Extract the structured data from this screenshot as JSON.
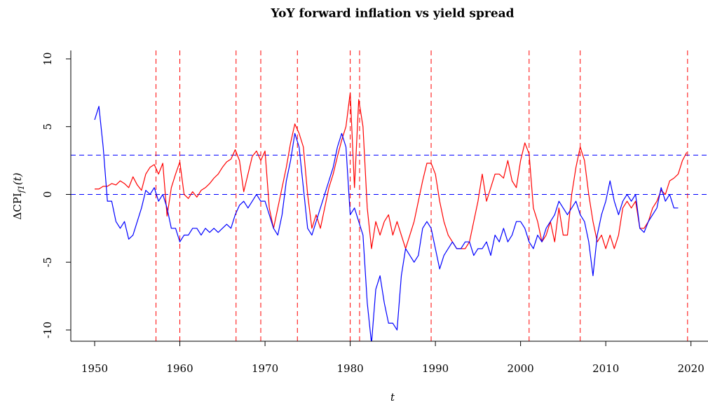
{
  "chart_data": {
    "type": "line",
    "title": "YoY forward inflation vs yield spread",
    "xlabel": "t",
    "ylabel": {
      "base": "ΔCPI",
      "sub": "f1",
      "rest": "(t)"
    },
    "xlim": [
      1947.2,
      2022.0
    ],
    "ylim": [
      -10.83,
      10.62
    ],
    "xticks": [
      1950,
      1960,
      1970,
      1980,
      1990,
      2000,
      2010,
      2020
    ],
    "yticks": [
      -10,
      -5,
      0,
      5,
      10
    ],
    "vlines": {
      "color": "#ff0000",
      "values": [
        1957.2,
        1960.0,
        1966.6,
        1969.5,
        1973.8,
        1980.0,
        1981.1,
        1989.5,
        2001.0,
        2007.0,
        2019.6
      ]
    },
    "hlines": {
      "color": "#0000ff",
      "values": [
        0,
        2.9
      ]
    },
    "x": [
      1950,
      1950.5,
      1951,
      1951.5,
      1952,
      1952.5,
      1953,
      1953.5,
      1954,
      1954.5,
      1955,
      1955.5,
      1956,
      1956.5,
      1957,
      1957.5,
      1958,
      1958.5,
      1959,
      1959.5,
      1960,
      1960.5,
      1961,
      1961.5,
      1962,
      1962.5,
      1963,
      1963.5,
      1964,
      1964.5,
      1965,
      1965.5,
      1966,
      1966.5,
      1967,
      1967.5,
      1968,
      1968.5,
      1969,
      1969.5,
      1970,
      1970.5,
      1971,
      1971.5,
      1972,
      1972.5,
      1973,
      1973.5,
      1974,
      1974.5,
      1975,
      1975.5,
      1976,
      1976.5,
      1977,
      1977.5,
      1978,
      1978.5,
      1979,
      1979.5,
      1980,
      1980.5,
      1981,
      1981.5,
      1982,
      1982.5,
      1983,
      1983.5,
      1984,
      1984.5,
      1985,
      1985.5,
      1986,
      1986.5,
      1987,
      1987.5,
      1988,
      1988.5,
      1989,
      1989.5,
      1990,
      1990.5,
      1991,
      1991.5,
      1992,
      1992.5,
      1993,
      1993.5,
      1994,
      1994.5,
      1995,
      1995.5,
      1996,
      1996.5,
      1997,
      1997.5,
      1998,
      1998.5,
      1999,
      1999.5,
      2000,
      2000.5,
      2001,
      2001.5,
      2002,
      2002.5,
      2003,
      2003.5,
      2004,
      2004.5,
      2005,
      2005.5,
      2006,
      2006.5,
      2007,
      2007.5,
      2008,
      2008.5,
      2009,
      2009.5,
      2010,
      2010.5,
      2011,
      2011.5,
      2012,
      2012.5,
      2013,
      2013.5,
      2014,
      2014.5,
      2015,
      2015.5,
      2016,
      2016.5,
      2017,
      2017.5,
      2018,
      2018.5,
      2019,
      2019.5
    ],
    "series": [
      {
        "color": "#ff0000",
        "values": [
          0.4,
          0.4,
          0.6,
          0.6,
          0.8,
          0.7,
          1.0,
          0.8,
          0.5,
          1.3,
          0.7,
          0.3,
          1.5,
          2.0,
          2.2,
          1.5,
          2.3,
          -1.6,
          0.5,
          1.5,
          2.4,
          0,
          -0.3,
          0.2,
          -0.2,
          0.3,
          0.5,
          0.8,
          1.2,
          1.5,
          2.0,
          2.4,
          2.6,
          3.3,
          2.5,
          0.2,
          1.5,
          2.8,
          3.2,
          2.5,
          3.2,
          -1,
          -2.5,
          -1,
          0.5,
          2,
          3.8,
          5.2,
          4.5,
          3.5,
          0,
          -2.5,
          -1.5,
          -2.5,
          -1,
          0.5,
          1.5,
          2.8,
          4,
          5,
          7.5,
          0.5,
          7,
          5,
          -1,
          -4,
          -2,
          -3,
          -2,
          -1.5,
          -3,
          -2,
          -3,
          -4,
          -3,
          -2,
          -0.5,
          1,
          2.3,
          2.3,
          1.5,
          -0.5,
          -2,
          -3,
          -3.5,
          -4,
          -4,
          -4,
          -3.5,
          -2,
          -0.5,
          1.5,
          -0.5,
          0.5,
          1.5,
          1.5,
          1.2,
          2.5,
          1,
          0.5,
          2.5,
          3.8,
          3,
          -1,
          -2,
          -3.5,
          -3,
          -2,
          -3.5,
          -1,
          -3,
          -3,
          0,
          2,
          3.5,
          2.5,
          0,
          -2,
          -3.5,
          -3,
          -4,
          -3,
          -4,
          -3,
          -1,
          -0.5,
          -1,
          -0.5,
          -2.5,
          -2.5,
          -2,
          -1,
          -0.5,
          0.3,
          0,
          1,
          1.2,
          1.5,
          2.5,
          3.1
        ]
      },
      {
        "color": "#0000ff",
        "values": [
          5.5,
          6.5,
          3.5,
          -0.5,
          -0.5,
          -2,
          -2.5,
          -2,
          -3.3,
          -3,
          -2,
          -1,
          0.3,
          0,
          0.5,
          -0.5,
          0,
          -1,
          -2.5,
          -2.5,
          -3.5,
          -3,
          -3,
          -2.5,
          -2.5,
          -3,
          -2.5,
          -2.8,
          -2.5,
          -2.8,
          -2.5,
          -2.2,
          -2.5,
          -1.5,
          -0.8,
          -0.5,
          -1,
          -0.5,
          0,
          -0.5,
          -0.5,
          -1.5,
          -2.5,
          -3,
          -1.5,
          1,
          2.5,
          4.5,
          3.5,
          0.5,
          -2.5,
          -3,
          -2,
          -1,
          0,
          1,
          2,
          3.5,
          4.5,
          3.5,
          -1.5,
          -1,
          -2,
          -3,
          -8,
          -11,
          -7,
          -6,
          -8,
          -9.5,
          -9.5,
          -10,
          -6,
          -4,
          -4.5,
          -5,
          -4.5,
          -2.5,
          -2,
          -2.5,
          -4,
          -5.5,
          -4.5,
          -4,
          -3.5,
          -4,
          -4,
          -3.5,
          -3.5,
          -4.5,
          -4,
          -4,
          -3.5,
          -4.5,
          -3,
          -3.5,
          -2.5,
          -3.5,
          -3,
          -2,
          -2,
          -2.5,
          -3.5,
          -4,
          -3,
          -3.5,
          -2.5,
          -2,
          -1.5,
          -0.5,
          -1,
          -1.5,
          -1,
          -0.5,
          -1.5,
          -2,
          -3.5,
          -6,
          -3,
          -1.5,
          -0.5,
          1,
          -0.5,
          -1.5,
          -0.5,
          0,
          -0.5,
          0,
          -2.5,
          -2.8,
          -2,
          -1.5,
          -1,
          0.5,
          -0.5,
          0,
          -1,
          -1,
          null,
          null
        ]
      }
    ]
  }
}
